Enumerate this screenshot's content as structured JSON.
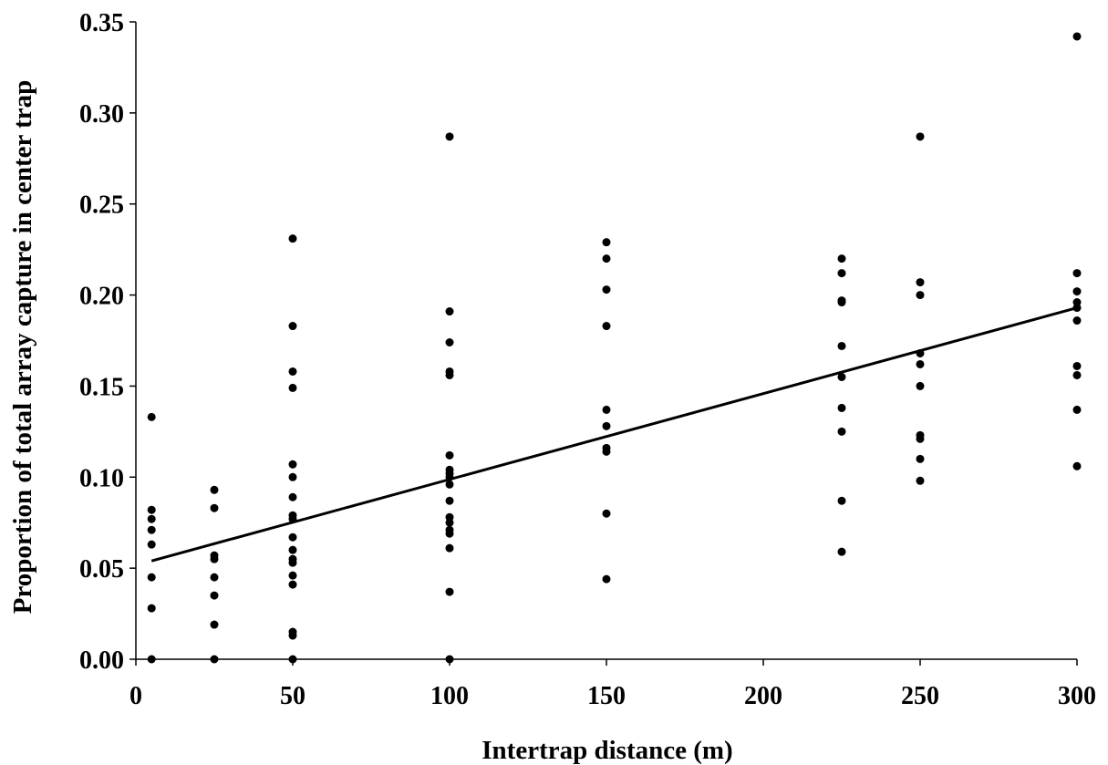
{
  "chart_data": {
    "type": "scatter",
    "title": "",
    "xlabel": "Intertrap distance (m)",
    "ylabel": "Proportion of total array capture in center trap",
    "xlim": [
      0,
      300
    ],
    "ylim": [
      0,
      0.35
    ],
    "x_ticks": [
      "0",
      "50",
      "100",
      "150",
      "200",
      "250",
      "300"
    ],
    "y_ticks": [
      "0.00",
      "0.05",
      "0.10",
      "0.15",
      "0.20",
      "0.25",
      "0.30",
      "0.35"
    ],
    "grid": false,
    "legend": "none",
    "series": [
      {
        "points": [
          [
            5,
            0.133
          ],
          [
            5,
            0.082
          ],
          [
            5,
            0.077
          ],
          [
            5,
            0.071
          ],
          [
            5,
            0.063
          ],
          [
            5,
            0.045
          ],
          [
            5,
            0.028
          ],
          [
            5,
            0.0
          ],
          [
            25,
            0.093
          ],
          [
            25,
            0.083
          ],
          [
            25,
            0.057
          ],
          [
            25,
            0.055
          ],
          [
            25,
            0.045
          ],
          [
            25,
            0.035
          ],
          [
            25,
            0.019
          ],
          [
            25,
            0.0
          ],
          [
            50,
            0.231
          ],
          [
            50,
            0.183
          ],
          [
            50,
            0.158
          ],
          [
            50,
            0.149
          ],
          [
            50,
            0.107
          ],
          [
            50,
            0.1
          ],
          [
            50,
            0.089
          ],
          [
            50,
            0.079
          ],
          [
            50,
            0.077
          ],
          [
            50,
            0.067
          ],
          [
            50,
            0.06
          ],
          [
            50,
            0.055
          ],
          [
            50,
            0.053
          ],
          [
            50,
            0.046
          ],
          [
            50,
            0.041
          ],
          [
            50,
            0.015
          ],
          [
            50,
            0.013
          ],
          [
            50,
            0.0
          ],
          [
            100,
            0.287
          ],
          [
            100,
            0.191
          ],
          [
            100,
            0.174
          ],
          [
            100,
            0.158
          ],
          [
            100,
            0.156
          ],
          [
            100,
            0.112
          ],
          [
            100,
            0.104
          ],
          [
            100,
            0.102
          ],
          [
            100,
            0.1
          ],
          [
            100,
            0.096
          ],
          [
            100,
            0.087
          ],
          [
            100,
            0.078
          ],
          [
            100,
            0.075
          ],
          [
            100,
            0.071
          ],
          [
            100,
            0.069
          ],
          [
            100,
            0.061
          ],
          [
            100,
            0.037
          ],
          [
            100,
            0.0
          ],
          [
            150,
            0.229
          ],
          [
            150,
            0.22
          ],
          [
            150,
            0.203
          ],
          [
            150,
            0.183
          ],
          [
            150,
            0.137
          ],
          [
            150,
            0.128
          ],
          [
            150,
            0.116
          ],
          [
            150,
            0.114
          ],
          [
            150,
            0.08
          ],
          [
            150,
            0.044
          ],
          [
            225,
            0.22
          ],
          [
            225,
            0.212
          ],
          [
            225,
            0.197
          ],
          [
            225,
            0.196
          ],
          [
            225,
            0.172
          ],
          [
            225,
            0.155
          ],
          [
            225,
            0.138
          ],
          [
            225,
            0.125
          ],
          [
            225,
            0.087
          ],
          [
            225,
            0.059
          ],
          [
            250,
            0.287
          ],
          [
            250,
            0.207
          ],
          [
            250,
            0.2
          ],
          [
            250,
            0.168
          ],
          [
            250,
            0.162
          ],
          [
            250,
            0.15
          ],
          [
            250,
            0.123
          ],
          [
            250,
            0.121
          ],
          [
            250,
            0.11
          ],
          [
            250,
            0.098
          ],
          [
            300,
            0.342
          ],
          [
            300,
            0.212
          ],
          [
            300,
            0.202
          ],
          [
            300,
            0.196
          ],
          [
            300,
            0.193
          ],
          [
            300,
            0.186
          ],
          [
            300,
            0.161
          ],
          [
            300,
            0.156
          ],
          [
            300,
            0.137
          ],
          [
            300,
            0.106
          ]
        ]
      }
    ],
    "trendline": {
      "type": "linear",
      "x_start": 5,
      "y_start": 0.054,
      "x_end": 300,
      "y_end": 0.193
    }
  }
}
